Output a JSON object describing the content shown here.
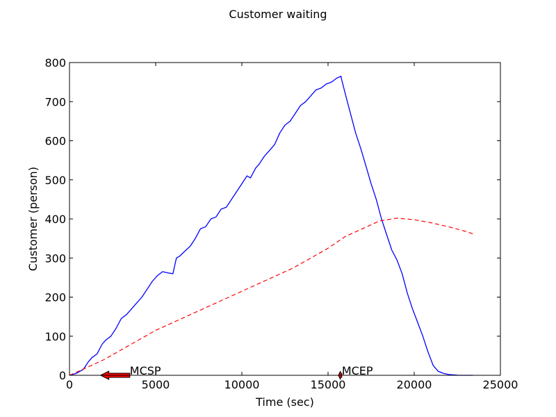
{
  "chart_data": {
    "type": "line",
    "title": "Customer waiting",
    "xlabel": "Time (sec)",
    "ylabel": "Customer (person)",
    "xlim": [
      0,
      25000
    ],
    "ylim": [
      0,
      800
    ],
    "x_ticks": [
      0,
      5000,
      10000,
      15000,
      20000,
      25000
    ],
    "y_ticks": [
      0,
      100,
      200,
      300,
      400,
      500,
      600,
      700,
      800
    ],
    "x_tick_labels": [
      "0",
      "5000",
      "10000",
      "15000",
      "20000",
      "25000"
    ],
    "y_tick_labels": [
      "0",
      "100",
      "200",
      "300",
      "400",
      "500",
      "600",
      "700",
      "800"
    ],
    "grid": false,
    "legend": "none",
    "series": [
      {
        "style": "solid",
        "color": "#0000ff",
        "x": [
          0,
          400,
          800,
          1100,
          1300,
          1600,
          1900,
          2100,
          2400,
          2700,
          3000,
          3300,
          3600,
          3900,
          4200,
          4500,
          4800,
          5100,
          5400,
          5700,
          6000,
          6200,
          6400,
          6700,
          7000,
          7300,
          7600,
          7900,
          8200,
          8500,
          8800,
          9100,
          9400,
          9700,
          10000,
          10300,
          10500,
          10800,
          11000,
          11300,
          11600,
          11900,
          12200,
          12500,
          12800,
          13100,
          13400,
          13700,
          14000,
          14300,
          14600,
          14900,
          15200,
          15500,
          15750,
          15800,
          16000,
          16300,
          16600,
          16900,
          17200,
          17500,
          17800,
          18100,
          18400,
          18700,
          19000,
          19300,
          19600,
          19900,
          20200,
          20500,
          20800,
          21100,
          21400,
          21700,
          22000,
          22300,
          22600,
          22900,
          23100,
          23300,
          23400
        ],
        "y": [
          0,
          5,
          15,
          35,
          45,
          55,
          80,
          90,
          100,
          120,
          145,
          155,
          170,
          185,
          200,
          220,
          240,
          255,
          265,
          262,
          260,
          300,
          305,
          318,
          330,
          350,
          375,
          380,
          400,
          405,
          425,
          430,
          450,
          470,
          490,
          510,
          505,
          530,
          540,
          560,
          575,
          590,
          620,
          640,
          650,
          670,
          690,
          700,
          715,
          730,
          735,
          745,
          750,
          760,
          765,
          755,
          720,
          670,
          620,
          580,
          535,
          490,
          450,
          400,
          360,
          320,
          295,
          260,
          210,
          170,
          135,
          100,
          60,
          25,
          10,
          5,
          2,
          1,
          0,
          0,
          0,
          0,
          0
        ]
      },
      {
        "style": "dashed",
        "color": "#ff0000",
        "x": [
          0,
          1000,
          2000,
          3000,
          4000,
          5000,
          6000,
          7000,
          8000,
          9000,
          10000,
          11000,
          12000,
          13000,
          14000,
          15000,
          16000,
          17000,
          18000,
          19000,
          20000,
          21000,
          22000,
          23000,
          23400
        ],
        "y": [
          0,
          20,
          40,
          65,
          90,
          115,
          135,
          155,
          175,
          195,
          215,
          235,
          255,
          275,
          300,
          325,
          355,
          375,
          395,
          402,
          398,
          390,
          380,
          368,
          362
        ]
      }
    ],
    "annotations": [
      {
        "text": "MCSP",
        "x": 3500,
        "y": 0,
        "arrow_to": [
          1800,
          0
        ],
        "arrow_color": "#ff0000"
      },
      {
        "text": "MCEP",
        "x": 15800,
        "y": 0,
        "arrow_to": [
          15600,
          0
        ],
        "arrow_color": "#ff0000"
      }
    ]
  }
}
